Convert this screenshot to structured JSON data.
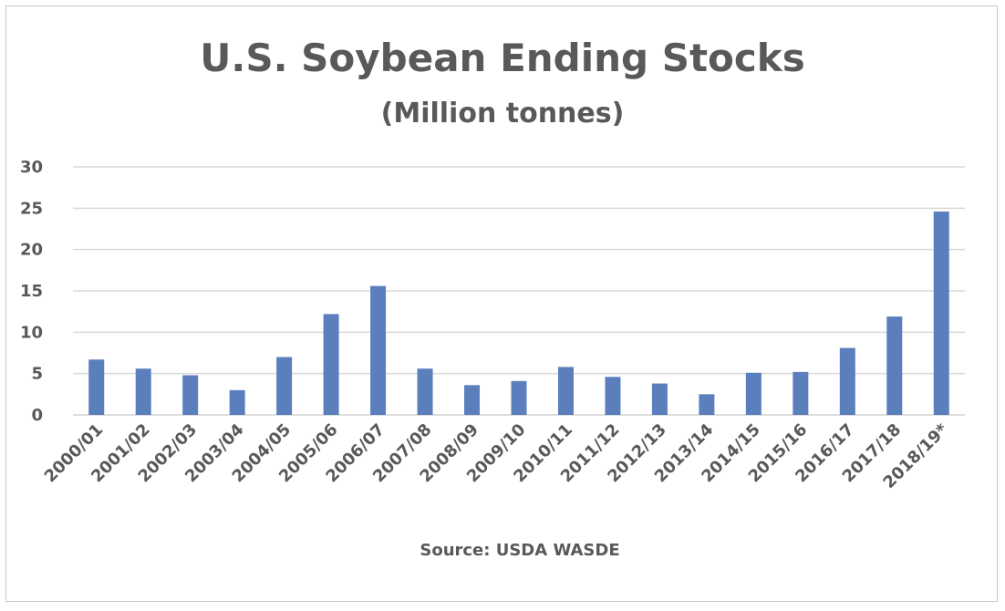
{
  "chart_data": {
    "type": "bar",
    "title": "U.S. Soybean Ending Stocks",
    "subtitle": "(Million tonnes)",
    "xlabel": "Source: USDA WASDE",
    "ylabel": "",
    "categories": [
      "2000/01",
      "2001/02",
      "2002/03",
      "2003/04",
      "2004/05",
      "2005/06",
      "2006/07",
      "2007/08",
      "2008/09",
      "2009/10",
      "2010/11",
      "2011/12",
      "2012/13",
      "2013/14",
      "2014/15",
      "2015/16",
      "2016/17",
      "2017/18",
      "2018/19*"
    ],
    "values": [
      6.7,
      5.6,
      4.8,
      3.0,
      7.0,
      12.2,
      15.6,
      5.6,
      3.6,
      4.1,
      5.8,
      4.6,
      3.8,
      2.5,
      5.1,
      5.2,
      8.1,
      11.9,
      24.6
    ],
    "ylim": [
      0,
      30
    ],
    "yticks": [
      0,
      5,
      10,
      15,
      20,
      25,
      30
    ],
    "grid": true,
    "bar_color": "#5b7fbd",
    "grid_color": "#d9d9d9",
    "text_color": "#595959"
  }
}
